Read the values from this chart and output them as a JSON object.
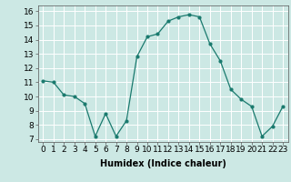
{
  "x": [
    0,
    1,
    2,
    3,
    4,
    5,
    6,
    7,
    8,
    9,
    10,
    11,
    12,
    13,
    14,
    15,
    16,
    17,
    18,
    19,
    20,
    21,
    22,
    23
  ],
  "y": [
    11.1,
    11.0,
    10.1,
    10.0,
    9.5,
    7.2,
    8.8,
    7.2,
    8.3,
    12.8,
    14.2,
    14.4,
    15.3,
    15.6,
    15.75,
    15.6,
    13.7,
    12.5,
    10.5,
    9.8,
    9.3,
    7.2,
    7.9,
    9.3
  ],
  "line_color": "#1a7a6e",
  "marker_color": "#1a7a6e",
  "bg_color": "#cce8e4",
  "grid_color": "#ffffff",
  "xlabel": "Humidex (Indice chaleur)",
  "xlabel_fontsize": 7,
  "yticks": [
    7,
    8,
    9,
    10,
    11,
    12,
    13,
    14,
    15,
    16
  ],
  "xticks": [
    0,
    1,
    2,
    3,
    4,
    5,
    6,
    7,
    8,
    9,
    10,
    11,
    12,
    13,
    14,
    15,
    16,
    17,
    18,
    19,
    20,
    21,
    22,
    23
  ],
  "xlim": [
    -0.5,
    23.5
  ],
  "ylim": [
    6.8,
    16.4
  ],
  "tick_fontsize": 6.5
}
